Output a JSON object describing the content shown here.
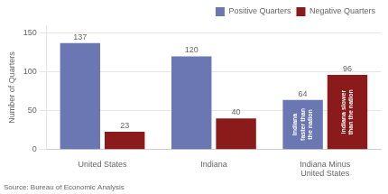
{
  "chart_data": {
    "type": "bar",
    "categories": [
      "United States",
      "Indiana",
      "Indiana Minus\nUnited States"
    ],
    "series": [
      {
        "name": "Positive Quarters",
        "color": "#6b77b3",
        "values": [
          137,
          120,
          64
        ]
      },
      {
        "name": "Negative Quarters",
        "color": "#8b1a1a",
        "values": [
          23,
          40,
          96
        ]
      }
    ],
    "ylabel": "Number of Quarters",
    "ylim": [
      0,
      160
    ],
    "yticks": [
      0,
      50,
      100,
      150
    ],
    "grid": true,
    "legend": "upper right",
    "data_labels": true,
    "annotations": [
      {
        "text": "Indiana\nfaster than\nthe nation",
        "series": "Positive Quarters",
        "category": "Indiana Minus\nUnited States"
      },
      {
        "text": "Indiana slower\nthan the nation",
        "series": "Negative Quarters",
        "category": "Indiana Minus\nUnited States"
      }
    ],
    "source": "Source: Bureau of Economic Analysis"
  }
}
